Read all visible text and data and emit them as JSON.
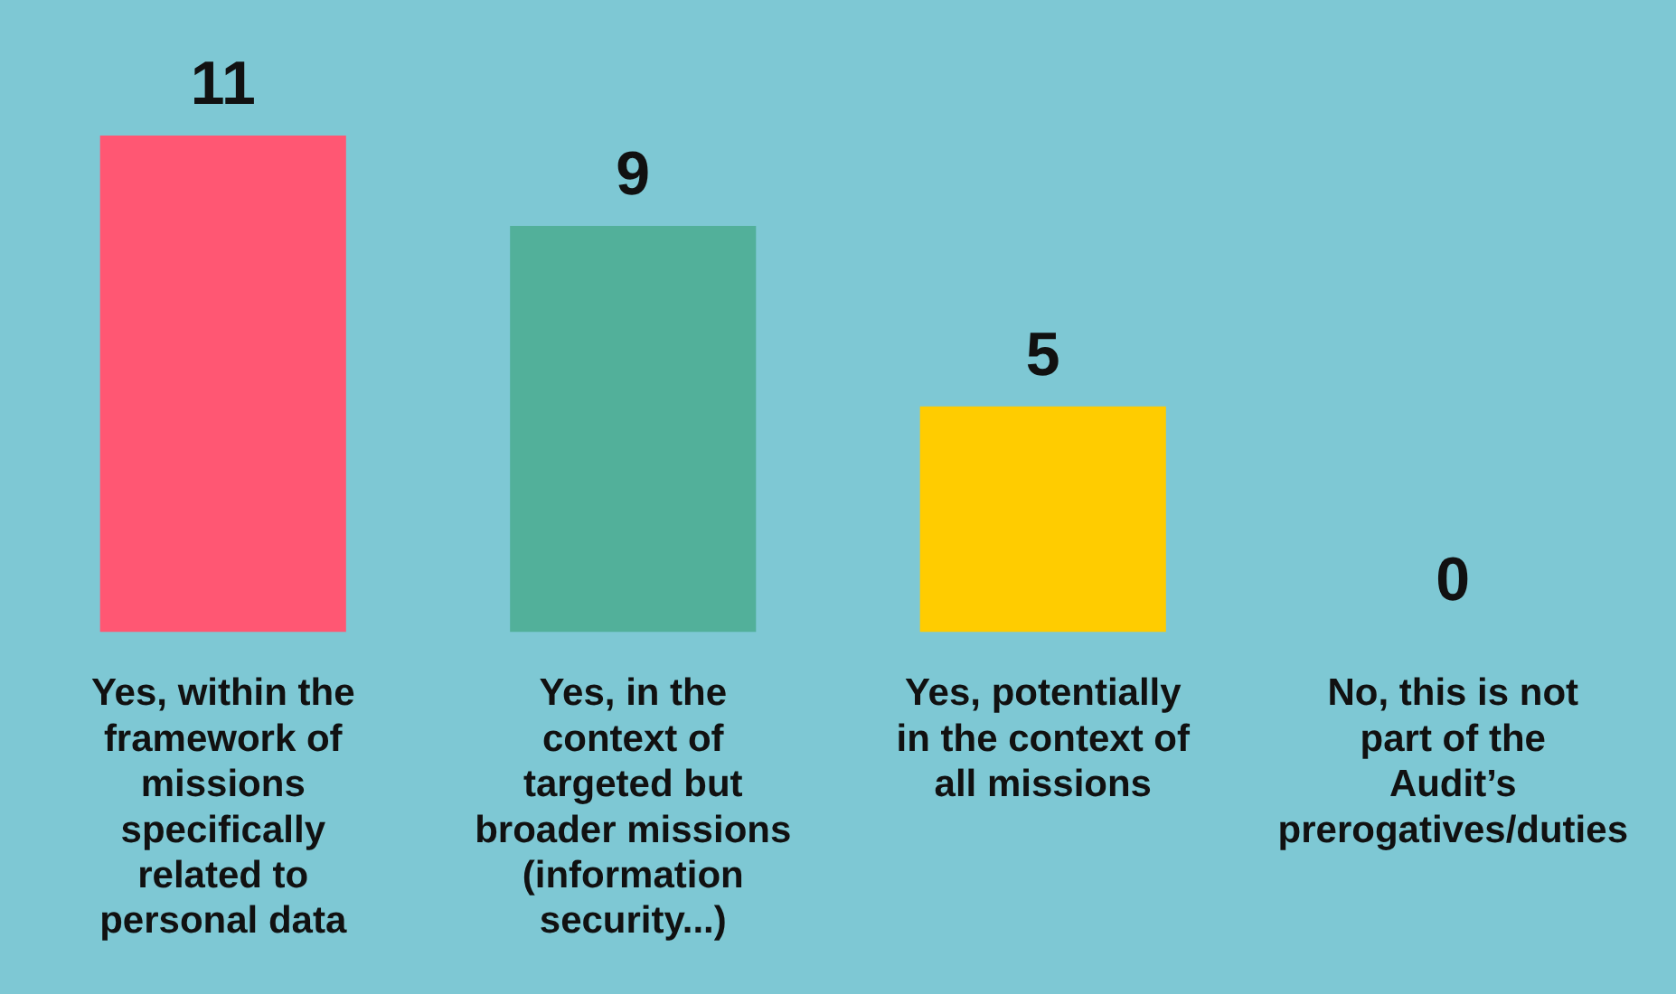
{
  "chart_data": {
    "type": "bar",
    "categories": [
      "Yes, within the framework of missions specifically related to personal data",
      "Yes, in the context of targeted but broader missions (information security...)",
      "Yes, potentially in the context of all missions",
      "No, this is not part of the Audit’s prerogatives/duties"
    ],
    "values": [
      11,
      9,
      5,
      0
    ],
    "colors": [
      "#ff5773",
      "#52b09a",
      "#ffcc00",
      "#ff8a00"
    ],
    "data_labels": true,
    "grid": false,
    "legend": false
  }
}
